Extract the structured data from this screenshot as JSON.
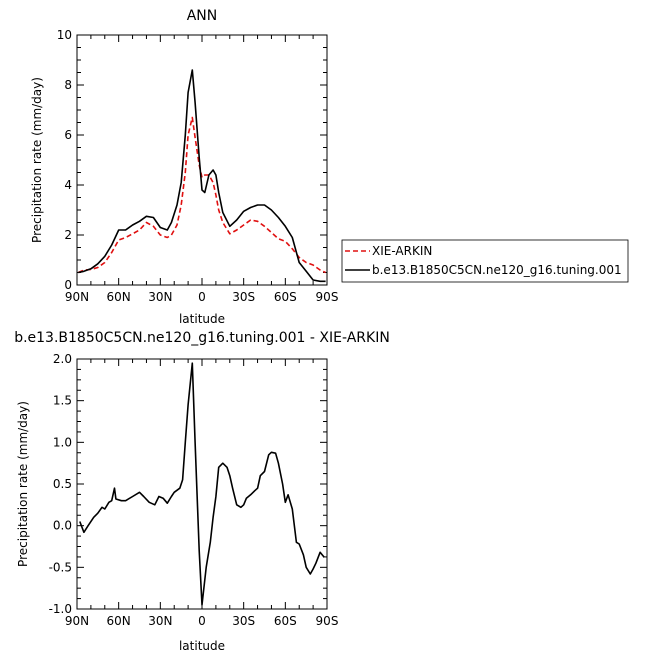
{
  "chart_data": [
    {
      "type": "line",
      "title": "ANN",
      "xlabel": "latitude",
      "ylabel": "Precipitation rate (mm/day)",
      "ylim": [
        0,
        10
      ],
      "xlim": [
        90,
        -90
      ],
      "x_tick_values": [
        90,
        60,
        30,
        0,
        -30,
        -60,
        -90
      ],
      "x_tick_labels": [
        "90N",
        "60N",
        "30N",
        "0",
        "30S",
        "60S",
        "90S"
      ],
      "y_tick_values": [
        0,
        2,
        4,
        6,
        8,
        10
      ],
      "y_tick_labels": [
        "0",
        "2",
        "4",
        "6",
        "8",
        "10"
      ],
      "legend_position": "right",
      "series": [
        {
          "name": "XIE-ARKIN",
          "color": "#e01010",
          "dash": "dashed",
          "x": [
            89,
            85,
            80,
            75,
            70,
            65,
            60,
            55,
            50,
            45,
            40,
            35,
            30,
            25,
            22,
            18,
            15,
            12,
            10,
            7,
            5,
            2,
            0,
            -2,
            -5,
            -8,
            -10,
            -12,
            -15,
            -20,
            -25,
            -30,
            -35,
            -40,
            -45,
            -50,
            -55,
            -60,
            -65,
            -70,
            -75,
            -80,
            -85,
            -89
          ],
          "y": [
            0.5,
            0.6,
            0.62,
            0.7,
            0.9,
            1.3,
            1.8,
            1.9,
            2.05,
            2.2,
            2.5,
            2.35,
            2.0,
            1.9,
            2.0,
            2.4,
            3.2,
            4.5,
            6.0,
            6.7,
            5.9,
            4.8,
            4.3,
            4.4,
            4.4,
            4.1,
            3.6,
            3.0,
            2.5,
            2.05,
            2.2,
            2.4,
            2.6,
            2.55,
            2.35,
            2.1,
            1.85,
            1.75,
            1.45,
            1.1,
            0.9,
            0.8,
            0.6,
            0.5
          ]
        },
        {
          "name": "b.e13.B1850C5CN.ne120_g16.tuning.001",
          "color": "#000000",
          "dash": "solid",
          "x": [
            89,
            85,
            80,
            75,
            70,
            65,
            60,
            55,
            50,
            45,
            40,
            35,
            30,
            25,
            22,
            18,
            15,
            12,
            10,
            7,
            5,
            2,
            0,
            -2,
            -5,
            -8,
            -10,
            -12,
            -15,
            -20,
            -25,
            -30,
            -35,
            -40,
            -45,
            -50,
            -55,
            -60,
            -65,
            -70,
            -75,
            -80,
            -85,
            -89
          ],
          "y": [
            0.5,
            0.55,
            0.65,
            0.85,
            1.15,
            1.6,
            2.2,
            2.2,
            2.4,
            2.55,
            2.75,
            2.7,
            2.3,
            2.2,
            2.5,
            3.2,
            4.1,
            6.0,
            7.7,
            8.6,
            7.3,
            5.1,
            3.8,
            3.7,
            4.4,
            4.6,
            4.4,
            3.7,
            2.9,
            2.35,
            2.6,
            2.95,
            3.1,
            3.2,
            3.2,
            3.0,
            2.7,
            2.35,
            1.9,
            0.9,
            0.55,
            0.2,
            0.15,
            0.15
          ]
        }
      ]
    },
    {
      "type": "line",
      "title": "b.e13.B1850C5CN.ne120_g16.tuning.001 - XIE-ARKIN",
      "xlabel": "latitude",
      "ylabel": "Precipitation rate (mm/day)",
      "ylim": [
        -1.0,
        2.0
      ],
      "xlim": [
        90,
        -90
      ],
      "x_tick_values": [
        90,
        60,
        30,
        0,
        -30,
        -60,
        -90
      ],
      "x_tick_labels": [
        "90N",
        "60N",
        "30N",
        "0",
        "30S",
        "60S",
        "90S"
      ],
      "y_tick_values": [
        -1.0,
        -0.5,
        0.0,
        0.5,
        1.0,
        1.5,
        2.0
      ],
      "y_tick_labels": [
        "-1.0",
        "-0.5",
        "0.0",
        "0.5",
        "1.0",
        "1.5",
        "2.0"
      ],
      "series": [
        {
          "color": "#000000",
          "dash": "solid",
          "x": [
            88,
            85,
            82,
            78,
            75,
            72,
            70,
            67,
            65,
            63,
            62,
            58,
            55,
            50,
            45,
            42,
            38,
            34,
            31,
            28,
            25,
            22,
            20,
            16,
            14,
            12,
            10,
            7,
            5,
            2,
            0,
            -3,
            -6,
            -8,
            -10,
            -12,
            -15,
            -18,
            -20,
            -22,
            -25,
            -28,
            -30,
            -32,
            -35,
            -38,
            -40,
            -42,
            -45,
            -48,
            -50,
            -53,
            -55,
            -58,
            -60,
            -62,
            -65,
            -68,
            -70,
            -73,
            -75,
            -78,
            -80,
            -82,
            -85,
            -88
          ],
          "y": [
            0.05,
            -0.08,
            0.0,
            0.1,
            0.15,
            0.22,
            0.2,
            0.28,
            0.3,
            0.45,
            0.32,
            0.3,
            0.3,
            0.35,
            0.4,
            0.35,
            0.28,
            0.25,
            0.35,
            0.33,
            0.27,
            0.35,
            0.4,
            0.45,
            0.55,
            1.0,
            1.45,
            1.95,
            1.0,
            -0.3,
            -0.95,
            -0.5,
            -0.2,
            0.1,
            0.35,
            0.7,
            0.75,
            0.7,
            0.6,
            0.45,
            0.25,
            0.22,
            0.25,
            0.33,
            0.37,
            0.42,
            0.45,
            0.6,
            0.65,
            0.85,
            0.88,
            0.87,
            0.75,
            0.5,
            0.28,
            0.37,
            0.2,
            -0.2,
            -0.22,
            -0.35,
            -0.5,
            -0.58,
            -0.52,
            -0.45,
            -0.32,
            -0.38
          ]
        }
      ]
    }
  ]
}
